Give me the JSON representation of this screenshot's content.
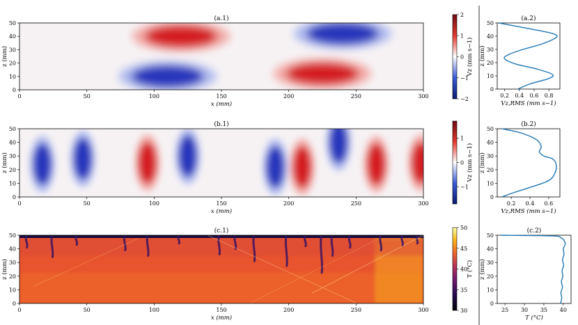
{
  "chart_data": [
    {
      "id": "a1",
      "type": "heatmap",
      "title": "(a.1)",
      "xlabel": "x (mm)",
      "ylabel": "z (mm)",
      "xlim": [
        0,
        300
      ],
      "ylim": [
        0,
        50
      ],
      "xticks": [
        "0",
        "50",
        "100",
        "150",
        "200",
        "250",
        "300"
      ],
      "yticks": [
        "0",
        "10",
        "20",
        "30",
        "40",
        "50"
      ],
      "colormap": "diverging blue-white-red",
      "colorbar": {
        "label": "Vz (mm s−1)",
        "range": [
          -2,
          2
        ],
        "ticks": [
          "−2",
          "−1",
          "0",
          "1",
          "2"
        ]
      },
      "structures": [
        {
          "x": 120,
          "z": 40,
          "sign": "positive"
        },
        {
          "x": 240,
          "z": 42,
          "sign": "negative"
        },
        {
          "x": 110,
          "z": 10,
          "sign": "negative"
        },
        {
          "x": 225,
          "z": 12,
          "sign": "positive"
        }
      ]
    },
    {
      "id": "a2",
      "type": "line",
      "title": "(a.2)",
      "xlabel": "Vz,RMS (mm s−1)",
      "ylabel": "z (mm)",
      "xlim": [
        0.1,
        0.95
      ],
      "ylim": [
        0,
        50
      ],
      "xticks": [
        "0.2",
        "0.4",
        "0.6",
        "0.8"
      ],
      "yticks": [
        "0",
        "10",
        "20",
        "30",
        "40",
        "50"
      ],
      "series": [
        {
          "color": "#1f77b4",
          "x": [
            0.12,
            0.5,
            0.85,
            0.9,
            0.7,
            0.45,
            0.25,
            0.2,
            0.35,
            0.65,
            0.85,
            0.8,
            0.55,
            0.38
          ],
          "y": [
            50,
            46,
            42,
            39,
            34,
            30,
            26,
            23,
            19,
            15,
            11,
            8,
            4,
            0
          ]
        }
      ]
    },
    {
      "id": "b1",
      "type": "heatmap",
      "title": "(b.1)",
      "xlabel": "x (mm)",
      "ylabel": "z (mm)",
      "xlim": [
        0,
        300
      ],
      "ylim": [
        0,
        50
      ],
      "xticks": [
        "0",
        "50",
        "100",
        "150",
        "200",
        "250",
        "300"
      ],
      "yticks": [
        "0",
        "10",
        "20",
        "30",
        "40",
        "50"
      ],
      "colormap": "diverging blue-white-red",
      "colorbar": {
        "label": "Vz (mm s−1)",
        "range": [
          -1.7,
          1.7
        ],
        "ticks": [
          "−1",
          "0",
          "1"
        ]
      },
      "structures": [
        {
          "x": 17,
          "z": 24,
          "sign": "negative"
        },
        {
          "x": 47,
          "z": 28,
          "sign": "negative"
        },
        {
          "x": 95,
          "z": 25,
          "sign": "positive"
        },
        {
          "x": 125,
          "z": 30,
          "sign": "negative"
        },
        {
          "x": 190,
          "z": 22,
          "sign": "negative"
        },
        {
          "x": 210,
          "z": 22,
          "sign": "positive"
        },
        {
          "x": 237,
          "z": 40,
          "sign": "negative"
        },
        {
          "x": 265,
          "z": 24,
          "sign": "positive"
        },
        {
          "x": 298,
          "z": 25,
          "sign": "positive"
        }
      ]
    },
    {
      "id": "b2",
      "type": "line",
      "title": "(b.2)",
      "xlabel": "Vz,RMS (mm s−1)",
      "ylabel": "z (mm)",
      "xlim": [
        0.05,
        0.72
      ],
      "ylim": [
        0,
        50
      ],
      "xticks": [
        "0.2",
        "0.4",
        "0.6"
      ],
      "yticks": [
        "0",
        "10",
        "20",
        "30",
        "40",
        "50"
      ],
      "series": [
        {
          "color": "#1f77b4",
          "x": [
            0.1,
            0.3,
            0.47,
            0.52,
            0.5,
            0.55,
            0.64,
            0.68,
            0.67,
            0.6,
            0.4,
            0.22,
            0.1
          ],
          "y": [
            50,
            47,
            42,
            37,
            33,
            30,
            28,
            24,
            18,
            12,
            7,
            3,
            0
          ]
        }
      ]
    },
    {
      "id": "c1",
      "type": "heatmap",
      "title": "(c.1)",
      "xlabel": "x (mm)",
      "ylabel": "z (mm)",
      "xlim": [
        0,
        300
      ],
      "ylim": [
        0,
        50
      ],
      "xticks": [
        "0",
        "50",
        "100",
        "150",
        "200",
        "250",
        "300"
      ],
      "yticks": [
        "0",
        "10",
        "20",
        "30",
        "40",
        "50"
      ],
      "colormap": "inferno",
      "colorbar": {
        "label": "T (°C)",
        "range": [
          30,
          50
        ],
        "ticks": [
          "30",
          "35",
          "40",
          "45",
          "50"
        ]
      }
    },
    {
      "id": "c2",
      "type": "line",
      "title": "(c.2)",
      "xlabel": "T (°C)",
      "ylabel": "z (mm)",
      "xlim": [
        23,
        42
      ],
      "ylim": [
        0,
        50
      ],
      "xticks": [
        "25",
        "30",
        "35",
        "40"
      ],
      "yticks": [
        "0",
        "10",
        "20",
        "30",
        "40",
        "50"
      ],
      "series": [
        {
          "color": "#1f77b4",
          "x": [
            24,
            37,
            39.5,
            40.5,
            40,
            40.2,
            39.8,
            40.1,
            39.7,
            39.9,
            39.5,
            39.8,
            39.4,
            39.6,
            39.3
          ],
          "y": [
            50,
            49.5,
            48,
            44,
            40,
            36,
            32,
            28,
            24,
            20,
            16,
            12,
            8,
            4,
            0
          ]
        }
      ]
    }
  ]
}
